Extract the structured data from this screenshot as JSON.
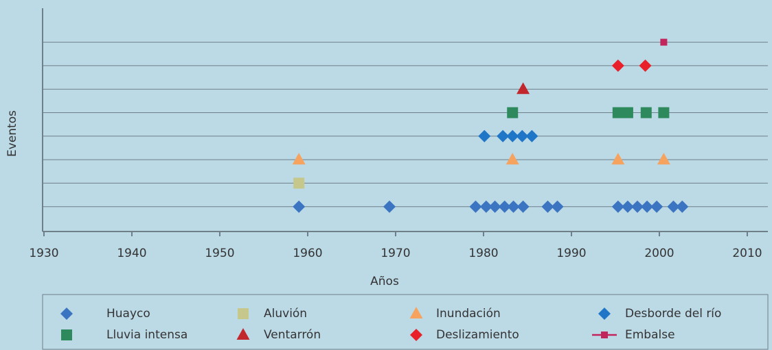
{
  "chart_data": {
    "type": "scatter",
    "x_label": "Años",
    "y_label": "Eventos",
    "xlim": [
      1930,
      2012
    ],
    "xticks": [
      1930,
      1940,
      1950,
      1960,
      1970,
      1980,
      1990,
      2000,
      2010
    ],
    "ylim": [
      0,
      9.5
    ],
    "yticks": [
      1,
      2,
      3,
      4,
      5,
      6,
      7,
      8
    ],
    "ytick_labels": false,
    "grid": true,
    "legend": "bottom",
    "series": [
      {
        "name": "Huayco",
        "color": "#3b74c0",
        "marker": "diamond",
        "x": [
          1959,
          1969.3,
          1979.1,
          1980.3,
          1981.3,
          1982.4,
          1983.4,
          1984.5,
          1987.3,
          1988.4,
          1995.3,
          1996.4,
          1997.5,
          1998.6,
          1999.7,
          2001.6,
          2002.6
        ],
        "values": [
          1,
          1,
          1,
          1,
          1,
          1,
          1,
          1,
          1,
          1,
          1,
          1,
          1,
          1,
          1,
          1,
          1
        ]
      },
      {
        "name": "Aluvión",
        "color": "#c6c78a",
        "marker": "square",
        "x": [
          1959
        ],
        "values": [
          2
        ]
      },
      {
        "name": "Inundación",
        "color": "#f5a35f",
        "marker": "triangle",
        "x": [
          1959,
          1983.3,
          1995.3,
          2000.5
        ],
        "values": [
          3,
          3,
          3,
          3
        ]
      },
      {
        "name": "Desborde del río",
        "color": "#1f76c6",
        "marker": "diamond",
        "x": [
          1980.1,
          1982.2,
          1983.3,
          1984.4,
          1985.5
        ],
        "values": [
          4,
          4,
          4,
          4,
          4
        ]
      },
      {
        "name": "Lluvia intensa",
        "color": "#2e8a5d",
        "marker": "square",
        "x": [
          1983.3,
          1995.3,
          1996.4,
          1998.5,
          2000.5
        ],
        "values": [
          5,
          5,
          5,
          5,
          5
        ]
      },
      {
        "name": "Ventarrón",
        "color": "#c1272d",
        "marker": "triangle",
        "x": [
          1984.5
        ],
        "values": [
          6
        ]
      },
      {
        "name": "Deslizamiento",
        "color": "#e8202a",
        "marker": "diamond",
        "x": [
          1995.3,
          1998.4
        ],
        "values": [
          7,
          7
        ]
      },
      {
        "name": "Embalse",
        "color": "#c2255c",
        "marker": "line-square",
        "x": [
          2000.5
        ],
        "values": [
          8
        ]
      }
    ]
  }
}
